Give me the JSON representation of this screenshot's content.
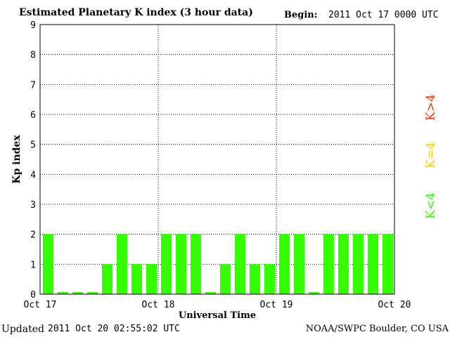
{
  "header": {
    "title": "Estimated Planetary K index (3 hour data)",
    "begin_label": "Begin:",
    "begin_value": "2011 Oct 17 0000 UTC"
  },
  "footer": {
    "updated_label": "Updated",
    "updated_value": "2011 Oct 20 02:55:02 UTC",
    "credit": "NOAA/SWPC Boulder, CO USA"
  },
  "legend": {
    "above": {
      "label": "K>4",
      "color": "#ff3300"
    },
    "equal": {
      "label": "K=4",
      "color": "#ffcc00"
    },
    "below": {
      "label": "K<4",
      "color": "#33ff00"
    }
  },
  "chart_data": {
    "type": "bar",
    "title": "Estimated Planetary K index (3 hour data)",
    "xlabel": "Universal Time",
    "ylabel": "Kp index",
    "ylim": [
      0,
      9
    ],
    "y_ticks": [
      "0",
      "1",
      "2",
      "3",
      "4",
      "5",
      "6",
      "7",
      "8",
      "9"
    ],
    "x_ticks": [
      "Oct 17",
      "Oct 18",
      "Oct 19",
      "Oct 20"
    ],
    "grid": true,
    "bar_color": "#33ff00",
    "interval_hours": 3,
    "values": [
      2,
      0,
      0,
      0,
      1,
      2,
      1,
      1,
      2,
      2,
      2,
      0,
      1,
      2,
      1,
      1,
      2,
      2,
      0,
      2,
      2,
      2,
      2,
      2
    ]
  }
}
